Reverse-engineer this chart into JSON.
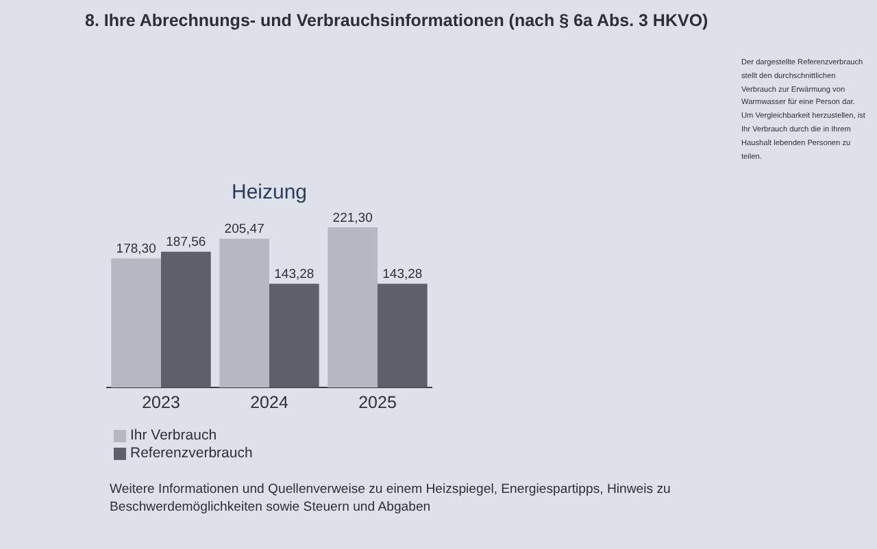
{
  "chart_data": {
    "type": "bar",
    "title": "8. Ihre Abrechnungs- und Verbrauchsinformationen (nach § 6a Abs. 3 HKVO)",
    "subtitle": "Heizung",
    "categories": [
      "2023",
      "2024",
      "2025"
    ],
    "series": [
      {
        "name": "Ihr Verbrauch",
        "color": "#b3b8c2",
        "values": [
          178.3,
          205.47,
          221.3
        ],
        "value_labels": [
          "178,30",
          "205,47",
          "221,30"
        ]
      },
      {
        "name": "Referenzverbrauch",
        "color": "#5d606b",
        "values": [
          187.56,
          143.28,
          143.28
        ],
        "value_labels": [
          "187,56",
          "143,28",
          "143,28"
        ]
      }
    ],
    "legend": "bottom left",
    "annotations": [
      "Der dargestellte Referenzverbrauch stellt den durchschnittlichen Verbrauch zur Erwärmung von Warmwasser für eine Person dar. Um Vergleichbarkeit herzustellen, ist Ihr Verbrauch durch die in Ihrem Haushalt lebenden Personen zu teilen.",
      "Weitere Informationen und Quellenverweise zu einem Heizspiegel, Energiespartipps, Hinweis zu Beschwerdemöglichkeiten sowie Steuern und Abgaben"
    ]
  }
}
